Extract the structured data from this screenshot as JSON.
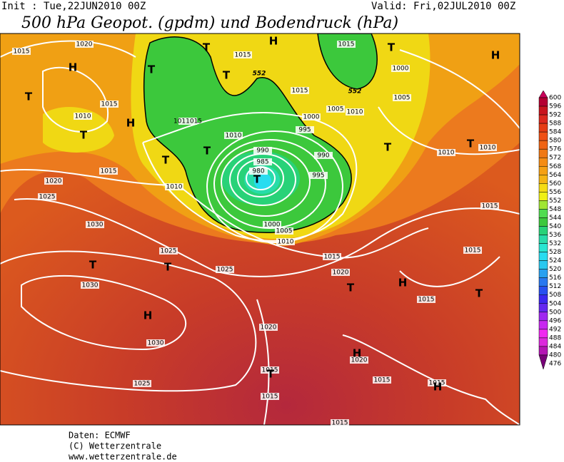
{
  "header": {
    "init": "Init : Tue,22JUN2010 00Z",
    "valid": "Valid: Fri,02JUL2010 00Z",
    "title": "500 hPa Geopot. (gpdm) und Bodendruck (hPa)"
  },
  "legend": {
    "levels": [
      600,
      596,
      592,
      588,
      584,
      580,
      576,
      572,
      568,
      564,
      560,
      556,
      552,
      548,
      544,
      540,
      536,
      532,
      528,
      524,
      520,
      516,
      512,
      508,
      504,
      500,
      496,
      492,
      488,
      484,
      480,
      476
    ],
    "colors": [
      "#c8005a",
      "#b40032",
      "#c8141e",
      "#dc281e",
      "#e63c14",
      "#f05014",
      "#f06414",
      "#f07814",
      "#f58c14",
      "#f5a014",
      "#f5b414",
      "#f5dc14",
      "#f0f014",
      "#a0e632",
      "#50dc50",
      "#3cc83c",
      "#28d278",
      "#28dcaa",
      "#28e6d2",
      "#28dcf0",
      "#28c8f0",
      "#28a0f0",
      "#2878f0",
      "#2850f0",
      "#3c28f0",
      "#6428f0",
      "#a028f0",
      "#c828f0",
      "#f028f0",
      "#dc28dc",
      "#b414b4",
      "#780078"
    ]
  },
  "map": {
    "isobar_labels": [
      "1015",
      "1020",
      "1015",
      "1010",
      "1011015",
      "1010",
      "1015",
      "1020",
      "1025",
      "1010",
      "1030",
      "1025",
      "1025",
      "1030",
      "1030",
      "1025",
      "1015",
      "1015",
      "1005",
      "1000",
      "1010",
      "995",
      "990",
      "985",
      "980",
      "995",
      "990",
      "1000",
      "1005",
      "1010",
      "1015",
      "1020",
      "1005",
      "1000",
      "1015",
      "1010",
      "1010",
      "1015",
      "1015",
      "1015",
      "1020",
      "1015",
      "1015",
      "1015",
      "1015",
      "1020",
      "1015"
    ],
    "pressure_systems": [
      "H",
      "T",
      "T",
      "H",
      "T",
      "T",
      "T",
      "H",
      "T",
      "H",
      "T",
      "T",
      "T",
      "T",
      "T",
      "T",
      "T",
      "H",
      "T",
      "H",
      "T",
      "H",
      "T",
      "H"
    ],
    "geopotential_labels": [
      "552",
      "552"
    ]
  },
  "footer": {
    "lines": [
      "Daten: ECMWF",
      "(C) Wetterzentrale",
      "www.wetterzentrale.de"
    ]
  }
}
